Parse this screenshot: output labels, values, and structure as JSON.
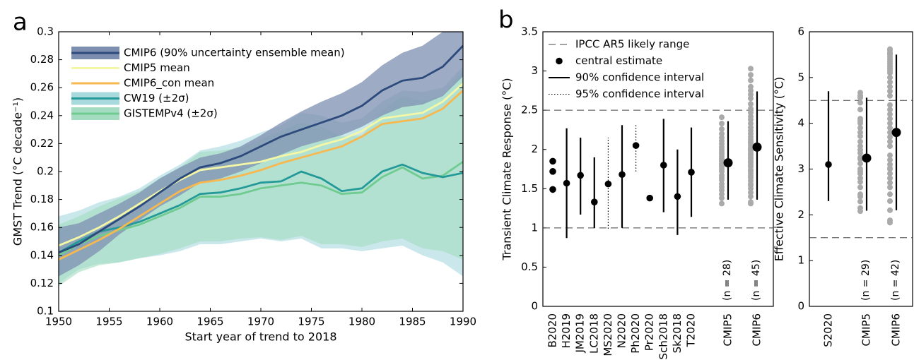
{
  "chart_data": [
    {
      "type": "band-line",
      "label": "a",
      "xlabel": "Start year of trend to 2018",
      "ylabel": "GMST Trend (°C decade⁻¹)",
      "xlim": [
        1950,
        1990
      ],
      "xticks": [
        1950,
        1955,
        1960,
        1965,
        1970,
        1975,
        1980,
        1985,
        1990
      ],
      "ylim": [
        0.1,
        0.3
      ],
      "yticks": [
        0.1,
        0.12,
        0.14,
        0.16,
        0.18,
        0.2,
        0.22,
        0.24,
        0.26,
        0.28,
        0.3
      ],
      "x": [
        1950,
        1952,
        1954,
        1956,
        1958,
        1960,
        1962,
        1964,
        1966,
        1968,
        1970,
        1972,
        1974,
        1976,
        1978,
        1980,
        1982,
        1984,
        1986,
        1988,
        1990
      ],
      "series": [
        {
          "name": "CMIP6 (90% uncertainty ensemble mean)",
          "color": "#2c4a7c",
          "band_color": "#7d8fb0",
          "values": [
            0.142,
            0.148,
            0.157,
            0.166,
            0.175,
            0.185,
            0.195,
            0.203,
            0.206,
            0.211,
            0.218,
            0.225,
            0.23,
            0.235,
            0.24,
            0.247,
            0.258,
            0.265,
            0.267,
            0.275,
            0.29
          ],
          "lower": [
            0.125,
            0.133,
            0.143,
            0.155,
            0.165,
            0.175,
            0.183,
            0.192,
            0.195,
            0.2,
            0.206,
            0.212,
            0.218,
            0.222,
            0.226,
            0.232,
            0.24,
            0.246,
            0.248,
            0.254,
            0.268
          ],
          "upper": [
            0.16,
            0.163,
            0.17,
            0.177,
            0.185,
            0.195,
            0.203,
            0.21,
            0.213,
            0.218,
            0.226,
            0.235,
            0.243,
            0.25,
            0.256,
            0.264,
            0.276,
            0.285,
            0.29,
            0.3,
            0.305
          ]
        },
        {
          "name": "CMIP5 mean",
          "color": "#f3f7a6",
          "values": [
            0.147,
            0.153,
            0.16,
            0.168,
            0.177,
            0.186,
            0.194,
            0.201,
            0.203,
            0.205,
            0.207,
            0.211,
            0.214,
            0.219,
            0.223,
            0.229,
            0.238,
            0.24,
            0.242,
            0.25,
            0.263
          ]
        },
        {
          "name": "CMIP6_con mean",
          "color": "#f6b84f",
          "values": [
            0.137,
            0.144,
            0.151,
            0.159,
            0.168,
            0.177,
            0.186,
            0.192,
            0.194,
            0.197,
            0.201,
            0.206,
            0.21,
            0.214,
            0.218,
            0.225,
            0.234,
            0.236,
            0.238,
            0.245,
            0.258
          ]
        },
        {
          "name": "CW19 (±2σ)",
          "color": "#249a98",
          "band_color": "#a7d9dd",
          "values": [
            0.142,
            0.15,
            0.157,
            0.16,
            0.164,
            0.17,
            0.176,
            0.184,
            0.185,
            0.188,
            0.192,
            0.193,
            0.2,
            0.195,
            0.186,
            0.188,
            0.2,
            0.205,
            0.199,
            0.196,
            0.199
          ],
          "lower": [
            0.12,
            0.13,
            0.134,
            0.135,
            0.138,
            0.14,
            0.143,
            0.148,
            0.148,
            0.15,
            0.152,
            0.15,
            0.152,
            0.145,
            0.145,
            0.143,
            0.145,
            0.147,
            0.14,
            0.135,
            0.125
          ],
          "upper": [
            0.168,
            0.172,
            0.178,
            0.182,
            0.188,
            0.197,
            0.205,
            0.215,
            0.218,
            0.222,
            0.228,
            0.233,
            0.242,
            0.24,
            0.235,
            0.238,
            0.25,
            0.258,
            0.257,
            0.26,
            0.275
          ]
        },
        {
          "name": "GISTEMPv4 (±2σ)",
          "color": "#6fcb90",
          "band_color": "#a3dcc0",
          "values": [
            0.14,
            0.148,
            0.154,
            0.158,
            0.162,
            0.168,
            0.174,
            0.182,
            0.182,
            0.184,
            0.188,
            0.19,
            0.192,
            0.19,
            0.184,
            0.185,
            0.196,
            0.203,
            0.195,
            0.197,
            0.207
          ],
          "lower": [
            0.118,
            0.128,
            0.133,
            0.135,
            0.138,
            0.141,
            0.145,
            0.15,
            0.15,
            0.152,
            0.153,
            0.151,
            0.154,
            0.148,
            0.148,
            0.146,
            0.15,
            0.152,
            0.145,
            0.143,
            0.137
          ],
          "upper": [
            0.162,
            0.168,
            0.175,
            0.181,
            0.186,
            0.195,
            0.203,
            0.214,
            0.215,
            0.217,
            0.223,
            0.229,
            0.235,
            0.232,
            0.225,
            0.226,
            0.243,
            0.254,
            0.25,
            0.255,
            0.272
          ]
        }
      ]
    },
    {
      "type": "interval",
      "label": "b",
      "ylabel": "Transient Climate Response (°C)",
      "ylim": [
        0,
        3.5
      ],
      "yticks": [
        0,
        0.5,
        1,
        1.5,
        2,
        2.5,
        3,
        3.5
      ],
      "likely_range": [
        1,
        2.5
      ],
      "legend": [
        "IPCC AR5 likely range",
        "central estimate",
        "90% confidence interval",
        "95% confidence interval"
      ],
      "studies": [
        {
          "name": "B2020",
          "central": [
            1.85,
            1.72,
            1.49
          ]
        },
        {
          "name": "H2019",
          "central": [
            1.57
          ],
          "ci90": [
            0.87,
            2.27
          ]
        },
        {
          "name": "JM2019",
          "central": [
            1.67
          ],
          "ci90": [
            1.17,
            2.15
          ]
        },
        {
          "name": "LC2018",
          "central": [
            1.33
          ],
          "ci90": [
            1.0,
            1.9
          ]
        },
        {
          "name": "MS2020",
          "central": [
            1.56
          ],
          "ci95": [
            0.99,
            2.15
          ]
        },
        {
          "name": "N2020",
          "central": [
            1.68
          ],
          "ci90": [
            1.0,
            2.31
          ]
        },
        {
          "name": "Ph2020",
          "central": [
            2.05
          ],
          "ci95": [
            1.72,
            2.32
          ]
        },
        {
          "name": "Pr2020",
          "central": [
            1.38
          ]
        },
        {
          "name": "Sch2018",
          "central": [
            1.8
          ],
          "ci90": [
            1.2,
            2.39
          ]
        },
        {
          "name": "Sk2018",
          "central": [
            1.4
          ],
          "ci90": [
            0.91,
            2.0
          ]
        },
        {
          "name": "T2020",
          "central": [
            1.71
          ],
          "ci90": [
            1.14,
            2.28
          ]
        }
      ],
      "ensembles": [
        {
          "name": "CMIP5",
          "n_label": "(n = 28)",
          "central": 1.83,
          "ci90": [
            1.36,
            2.36
          ],
          "models": [
            1.31,
            1.38,
            1.43,
            1.48,
            1.52,
            1.56,
            1.61,
            1.64,
            1.67,
            1.72,
            1.75,
            1.78,
            1.8,
            1.82,
            1.85,
            1.88,
            1.91,
            1.94,
            1.97,
            2.0,
            2.03,
            2.07,
            2.11,
            2.15,
            2.2,
            2.26,
            2.33,
            2.41
          ]
        },
        {
          "name": "CMIP6",
          "n_label": "(n = 45)",
          "central": 2.03,
          "ci90": [
            1.36,
            2.74
          ],
          "models": [
            1.31,
            1.33,
            1.4,
            1.45,
            1.5,
            1.54,
            1.56,
            1.6,
            1.64,
            1.66,
            1.69,
            1.72,
            1.74,
            1.78,
            1.8,
            1.83,
            1.85,
            1.88,
            1.9,
            1.93,
            1.95,
            1.98,
            2.0,
            2.02,
            2.05,
            2.08,
            2.1,
            2.13,
            2.16,
            2.2,
            2.24,
            2.28,
            2.33,
            2.38,
            2.42,
            2.47,
            2.52,
            2.58,
            2.65,
            2.7,
            2.75,
            2.8,
            2.88,
            2.95,
            3.03
          ]
        }
      ]
    },
    {
      "type": "interval",
      "ylabel": "Effective Climate Sensitivity (°C)",
      "ylim": [
        0,
        6
      ],
      "yticks": [
        0,
        1,
        2,
        3,
        4,
        5,
        6
      ],
      "likely_range": [
        1.5,
        4.5
      ],
      "studies": [
        {
          "name": "S2020",
          "central": [
            3.1
          ],
          "ci90": [
            2.3,
            4.7
          ]
        }
      ],
      "ensembles": [
        {
          "name": "CMIP5",
          "n_label": "(n = 29)",
          "central": 3.24,
          "ci90": [
            2.09,
            4.56
          ],
          "models": [
            2.08,
            2.15,
            2.29,
            2.4,
            2.45,
            2.6,
            2.72,
            2.8,
            2.9,
            2.95,
            3.0,
            3.12,
            3.22,
            3.25,
            3.35,
            3.42,
            3.5,
            3.6,
            3.72,
            3.8,
            3.9,
            4.0,
            4.05,
            4.1,
            4.3,
            4.45,
            4.56,
            4.6,
            4.67
          ]
        },
        {
          "name": "CMIP6",
          "n_label": "(n = 42)",
          "central": 3.8,
          "ci90": [
            2.1,
            5.5
          ],
          "models": [
            1.83,
            1.88,
            2.1,
            2.3,
            2.45,
            2.6,
            2.7,
            2.8,
            2.9,
            3.0,
            3.02,
            3.1,
            3.2,
            3.3,
            3.5,
            3.6,
            3.7,
            3.8,
            3.9,
            4.0,
            4.1,
            4.2,
            4.3,
            4.4,
            4.6,
            4.7,
            4.8,
            4.9,
            5.0,
            5.1,
            5.15,
            5.2,
            5.25,
            5.3,
            5.35,
            5.4,
            5.45,
            5.5,
            5.52,
            5.55,
            5.6,
            5.62
          ]
        }
      ]
    }
  ]
}
